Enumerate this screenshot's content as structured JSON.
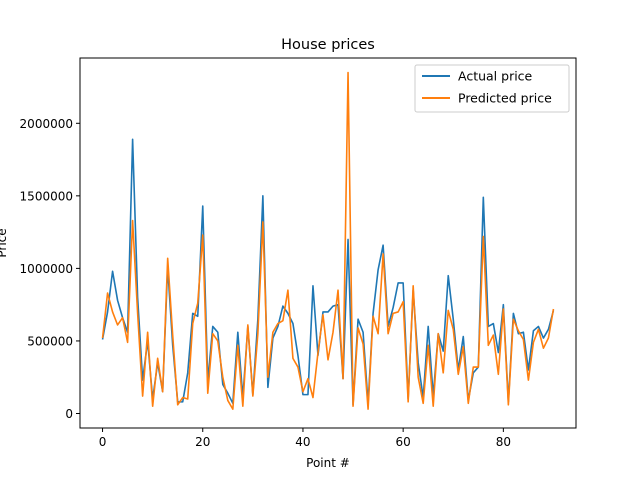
{
  "chart_data": {
    "type": "line",
    "title": "House prices",
    "xlabel": "Point #",
    "ylabel": "Price",
    "xlim": [
      -4.5,
      94.5
    ],
    "ylim": [
      -100000,
      2450000
    ],
    "xticks": [
      0,
      20,
      40,
      60,
      80
    ],
    "yticks": [
      0,
      500000,
      1000000,
      1500000,
      2000000
    ],
    "xtick_labels": [
      "0",
      "20",
      "40",
      "60",
      "80"
    ],
    "ytick_labels": [
      "0",
      "500000",
      "1000000",
      "1500000",
      "2000000"
    ],
    "grid": false,
    "legend_position": "upper right",
    "x": [
      0,
      1,
      2,
      3,
      4,
      5,
      6,
      7,
      8,
      9,
      10,
      11,
      12,
      13,
      14,
      15,
      16,
      17,
      18,
      19,
      20,
      21,
      22,
      23,
      24,
      25,
      26,
      27,
      28,
      29,
      30,
      31,
      32,
      33,
      34,
      35,
      36,
      37,
      38,
      39,
      40,
      41,
      42,
      43,
      44,
      45,
      46,
      47,
      48,
      49,
      50,
      51,
      52,
      53,
      54,
      55,
      56,
      57,
      58,
      59,
      60,
      61,
      62,
      63,
      64,
      65,
      66,
      67,
      68,
      69,
      70,
      71,
      72,
      73,
      74,
      75,
      76,
      77,
      78,
      79,
      80,
      81,
      82,
      83,
      84,
      85,
      86,
      87,
      88,
      89,
      90
    ],
    "series": [
      {
        "name": "Actual price",
        "color": "#1f77b4",
        "values": [
          510000,
          700000,
          980000,
          780000,
          660000,
          560000,
          1890000,
          800000,
          230000,
          500000,
          100000,
          350000,
          150000,
          1010000,
          470000,
          80000,
          80000,
          280000,
          690000,
          670000,
          1430000,
          220000,
          600000,
          560000,
          200000,
          140000,
          70000,
          560000,
          110000,
          600000,
          130000,
          650000,
          1500000,
          180000,
          520000,
          600000,
          740000,
          690000,
          620000,
          400000,
          130000,
          130000,
          880000,
          400000,
          700000,
          700000,
          740000,
          750000,
          240000,
          1200000,
          60000,
          650000,
          560000,
          70000,
          690000,
          990000,
          1160000,
          600000,
          730000,
          900000,
          900000,
          100000,
          850000,
          350000,
          110000,
          600000,
          120000,
          550000,
          430000,
          950000,
          650000,
          300000,
          530000,
          90000,
          280000,
          320000,
          1490000,
          600000,
          620000,
          420000,
          750000,
          80000,
          690000,
          550000,
          560000,
          300000,
          570000,
          600000,
          520000,
          580000,
          710000
        ]
      },
      {
        "name": "Predicted price",
        "color": "#ff7f0e",
        "values": [
          520000,
          830000,
          700000,
          610000,
          660000,
          490000,
          1330000,
          690000,
          120000,
          560000,
          50000,
          380000,
          150000,
          1070000,
          540000,
          60000,
          110000,
          100000,
          620000,
          760000,
          1230000,
          140000,
          550000,
          500000,
          250000,
          90000,
          30000,
          470000,
          50000,
          610000,
          120000,
          550000,
          1320000,
          250000,
          560000,
          620000,
          640000,
          850000,
          380000,
          320000,
          150000,
          240000,
          110000,
          420000,
          680000,
          370000,
          560000,
          850000,
          240000,
          2350000,
          50000,
          590000,
          480000,
          30000,
          670000,
          550000,
          1100000,
          550000,
          690000,
          700000,
          770000,
          80000,
          880000,
          250000,
          70000,
          470000,
          50000,
          550000,
          280000,
          710000,
          580000,
          270000,
          460000,
          70000,
          320000,
          320000,
          1220000,
          470000,
          540000,
          270000,
          720000,
          60000,
          650000,
          570000,
          510000,
          230000,
          490000,
          580000,
          450000,
          520000,
          720000
        ]
      }
    ]
  }
}
